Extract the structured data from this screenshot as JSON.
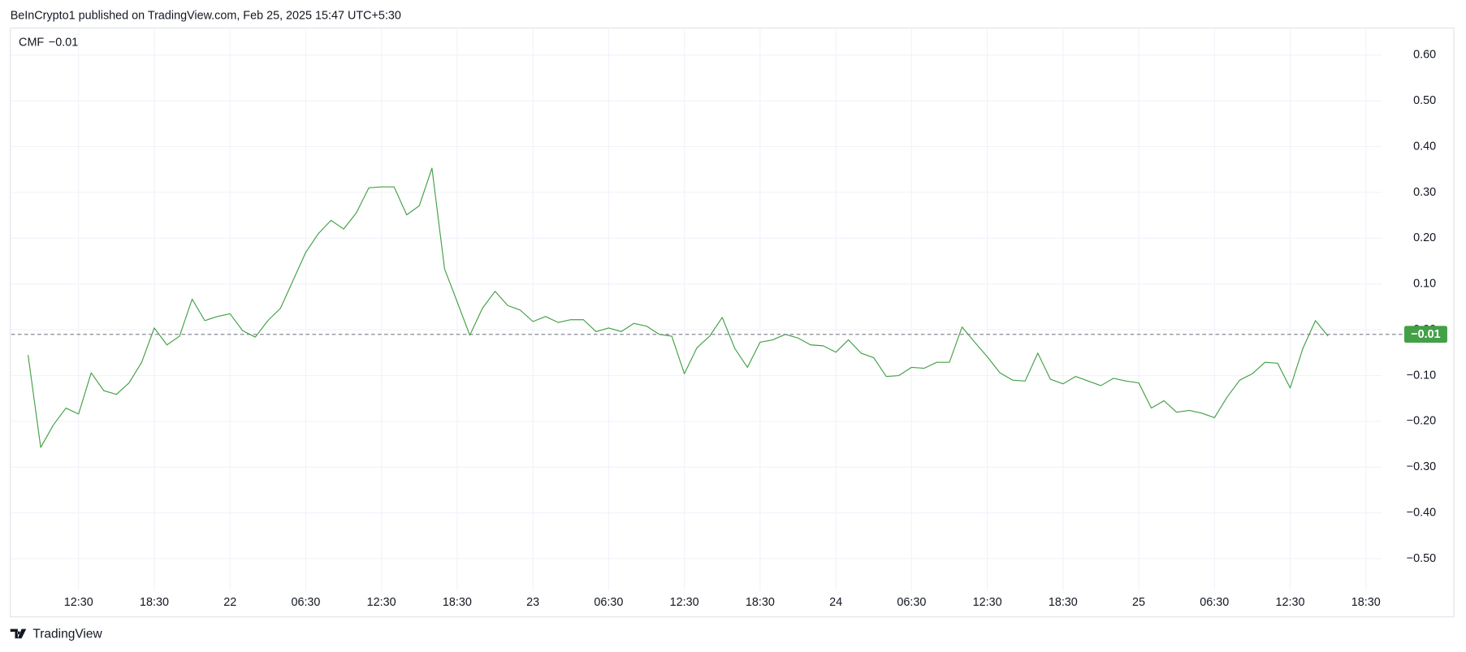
{
  "header": {
    "text": "BeInCrypto1 published on TradingView.com, Feb 25, 2025 15:47 UTC+5:30"
  },
  "footer": {
    "brand": "TradingView"
  },
  "chart_data": {
    "type": "line",
    "indicator": "CMF",
    "color": "#43a047",
    "grid": true,
    "last_value": -0.01,
    "last_value_label": "−0.01",
    "values": [
      -0.055,
      -0.257,
      -0.208,
      -0.171,
      -0.184,
      -0.094,
      -0.133,
      -0.141,
      -0.116,
      -0.071,
      0.004,
      -0.033,
      -0.014,
      0.067,
      0.02,
      0.029,
      0.035,
      -0.002,
      -0.016,
      0.02,
      0.047,
      0.108,
      0.169,
      0.21,
      0.239,
      0.22,
      0.255,
      0.31,
      0.312,
      0.312,
      0.251,
      0.271,
      0.353,
      0.133,
      0.061,
      -0.012,
      0.047,
      0.084,
      0.053,
      0.043,
      0.018,
      0.029,
      0.016,
      0.022,
      0.022,
      -0.004,
      0.004,
      -0.004,
      0.014,
      0.008,
      -0.01,
      -0.014,
      -0.096,
      -0.039,
      -0.014,
      0.027,
      -0.041,
      -0.082,
      -0.027,
      -0.022,
      -0.01,
      -0.018,
      -0.033,
      -0.035,
      -0.049,
      -0.022,
      -0.051,
      -0.061,
      -0.102,
      -0.1,
      -0.082,
      -0.084,
      -0.071,
      -0.071,
      0.006,
      -0.027,
      -0.059,
      -0.094,
      -0.11,
      -0.112,
      -0.051,
      -0.108,
      -0.118,
      -0.102,
      -0.112,
      -0.122,
      -0.106,
      -0.112,
      -0.116,
      -0.171,
      -0.155,
      -0.18,
      -0.176,
      -0.182,
      -0.192,
      -0.147,
      -0.11,
      -0.096,
      -0.071,
      -0.073,
      -0.127,
      -0.041,
      0.02,
      -0.014
    ],
    "xlim": [
      -1.333,
      107.26
    ],
    "xticks": [
      {
        "value": 4,
        "label": "12:30"
      },
      {
        "value": 10,
        "label": "18:30"
      },
      {
        "value": 16,
        "label": "22"
      },
      {
        "value": 22,
        "label": "06:30"
      },
      {
        "value": 28,
        "label": "12:30"
      },
      {
        "value": 34,
        "label": "18:30"
      },
      {
        "value": 40,
        "label": "23"
      },
      {
        "value": 46,
        "label": "06:30"
      },
      {
        "value": 52,
        "label": "12:30"
      },
      {
        "value": 58,
        "label": "18:30"
      },
      {
        "value": 64,
        "label": "24"
      },
      {
        "value": 70,
        "label": "06:30"
      },
      {
        "value": 76,
        "label": "12:30"
      },
      {
        "value": 82,
        "label": "18:30"
      },
      {
        "value": 88,
        "label": "25"
      },
      {
        "value": 94,
        "label": "06:30"
      },
      {
        "value": 100,
        "label": "12:30"
      },
      {
        "value": 106,
        "label": "18:30"
      }
    ],
    "ylim": [
      -0.627,
      0.659
    ],
    "yticks": [
      {
        "value": 0.6,
        "label": "0.60"
      },
      {
        "value": 0.5,
        "label": "0.50"
      },
      {
        "value": 0.4,
        "label": "0.40"
      },
      {
        "value": 0.3,
        "label": "0.30"
      },
      {
        "value": 0.2,
        "label": "0.20"
      },
      {
        "value": 0.1,
        "label": "0.10"
      },
      {
        "value": 0,
        "label": "0.00"
      },
      {
        "value": -0.1,
        "label": "−0.10"
      },
      {
        "value": -0.2,
        "label": "−0.20"
      },
      {
        "value": -0.3,
        "label": "−0.30"
      },
      {
        "value": -0.4,
        "label": "−0.40"
      },
      {
        "value": -0.5,
        "label": "−0.50"
      }
    ]
  }
}
